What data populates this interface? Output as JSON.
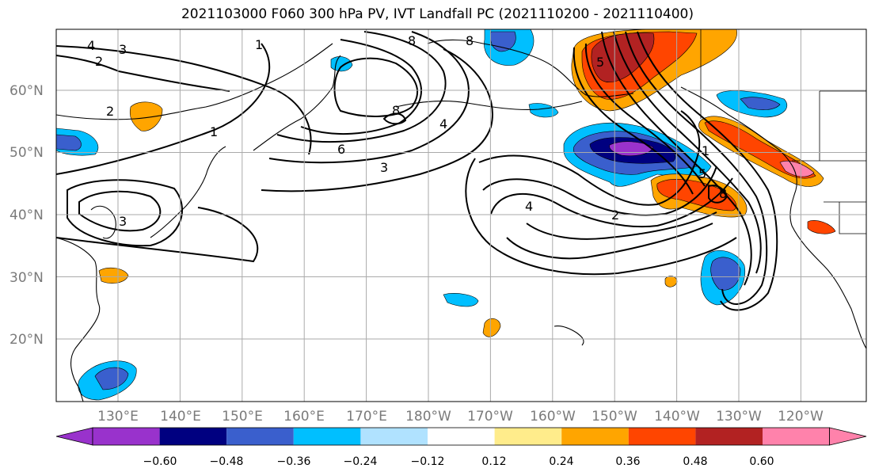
{
  "title": "2021103000 F060 300 hPa PV, IVT Landfall PC (2021110200 - 2021110400)",
  "lat_labels": [
    "60°N",
    "50°N",
    "40°N",
    "30°N",
    "20°N"
  ],
  "lat_values": [
    60,
    50,
    40,
    30,
    20
  ],
  "lon_labels": [
    "130°E",
    "140°E",
    "150°E",
    "160°E",
    "170°E",
    "180°W",
    "170°W",
    "160°W",
    "150°W",
    "140°W",
    "130°W",
    "120°W"
  ],
  "lon_values": [
    130,
    140,
    150,
    160,
    170,
    180,
    190,
    200,
    210,
    220,
    230,
    240
  ],
  "colorbar": {
    "labels": [
      "−0.60",
      "−0.48",
      "−0.36",
      "−0.24",
      "−0.12",
      "0.12",
      "0.24",
      "0.36",
      "0.48",
      "0.60"
    ],
    "colors": [
      "#9932cc",
      "#000080",
      "#3a5fcd",
      "#00bfff",
      "#b0e2ff",
      "#ffffff",
      "#ffec8b",
      "#ffa500",
      "#ff4500",
      "#b22222",
      "#ff82ab"
    ]
  },
  "contour_labels": [
    "1",
    "2",
    "3",
    "4",
    "5",
    "6",
    "8"
  ]
}
